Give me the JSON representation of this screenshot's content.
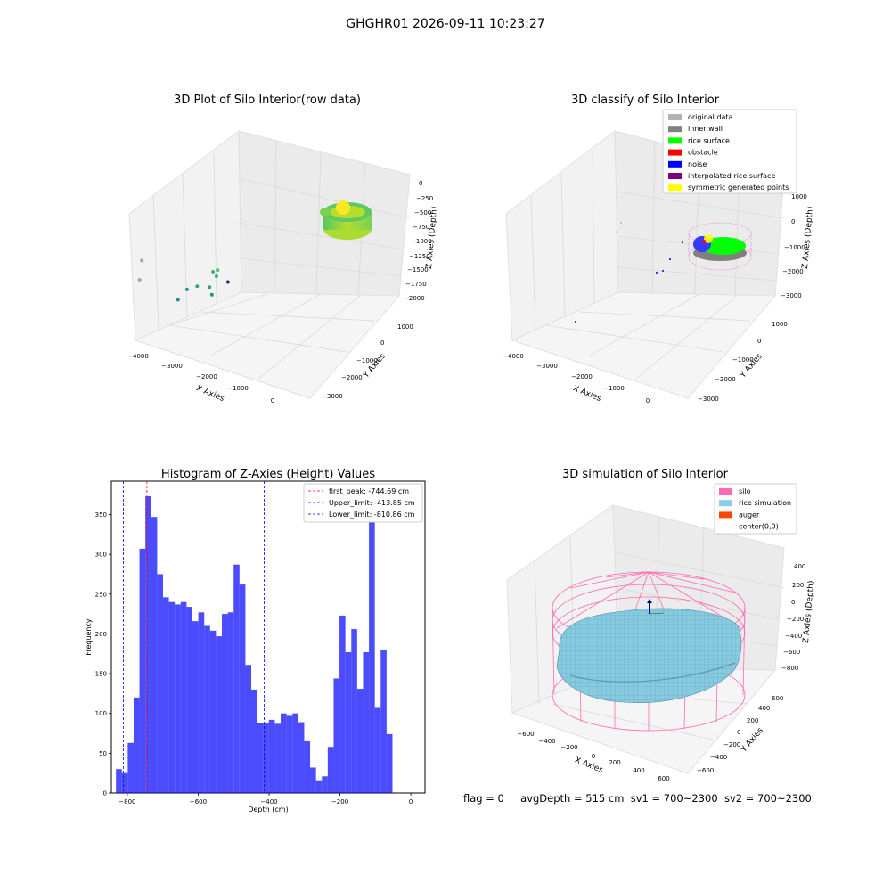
{
  "figure": {
    "suptitle": "GHGHR01 2026-09-11 10:23:27"
  },
  "footer": {
    "flag": "flag = 0",
    "avg_depth": "avgDepth = 515 cm",
    "sv1": "sv1 = 700~2300",
    "sv2": "sv2 = 700~2300"
  },
  "chart_data": [
    {
      "type": "scatter",
      "projection": "3d",
      "title": "3D Plot of Silo Interior(row data)",
      "xlabel": "X Axies",
      "ylabel": "Y Axies",
      "zlabel": "Z Axies (Depth)",
      "x_ticks": [
        "−4000",
        "−3000",
        "−2000",
        "−1000",
        "0"
      ],
      "y_ticks": [
        "1000",
        "0",
        "−1000",
        "−2000",
        "−3000"
      ],
      "z_ticks": [
        "0",
        "−250",
        "−500",
        "−750",
        "−1000",
        "−1250",
        "−1500",
        "−1750",
        "−2000"
      ],
      "colormap": "viridis",
      "points": [
        {
          "x": -3800,
          "y": 200,
          "z": -1400,
          "color": "#a6a6a6"
        },
        {
          "x": -3600,
          "y": 400,
          "z": -1100,
          "color": "#a6a6a6"
        },
        {
          "x": -2900,
          "y": -2400,
          "z": -1000,
          "color": "#4b1c74"
        },
        {
          "x": -2400,
          "y": 600,
          "z": -1500,
          "color": "#2a8f8a"
        },
        {
          "x": -2200,
          "y": 500,
          "z": -1300,
          "color": "#2a8f8a"
        },
        {
          "x": -1900,
          "y": 500,
          "z": -1200,
          "color": "#34a185"
        },
        {
          "x": -1600,
          "y": 400,
          "z": -1150,
          "color": "#34a185"
        },
        {
          "x": -1400,
          "y": 600,
          "z": -1250,
          "color": "#2a8f8a"
        },
        {
          "x": -1300,
          "y": 700,
          "z": -900,
          "color": "#3fb07b"
        },
        {
          "x": -1200,
          "y": 700,
          "z": -950,
          "color": "#3fb07b"
        },
        {
          "x": -1100,
          "y": 800,
          "z": -850,
          "color": "#4dbf6d"
        }
      ]
    },
    {
      "type": "scatter",
      "projection": "3d",
      "title": "3D classify of Silo Interior",
      "xlabel": "X Axies",
      "ylabel": "Y Axies",
      "zlabel": "Z Axies (Depth)",
      "x_ticks": [
        "−4000",
        "−3000",
        "−2000",
        "−1000",
        "0"
      ],
      "y_ticks": [
        "1000",
        "0",
        "−1000",
        "−2000",
        "−3000"
      ],
      "z_ticks": [
        "1000",
        "0",
        "−1000",
        "−2000",
        "−3000"
      ],
      "legend": [
        {
          "label": "original data",
          "color": "#b3b3b3"
        },
        {
          "label": "inner wall",
          "color": "#808080"
        },
        {
          "label": "rice surface",
          "color": "#00ff00"
        },
        {
          "label": "obstacle",
          "color": "#ff0000"
        },
        {
          "label": "noise",
          "color": "#0000ff"
        },
        {
          "label": "interpolated rice surface",
          "color": "#800080"
        },
        {
          "label": "symmetric generated points",
          "color": "#ffff00"
        }
      ],
      "legend_loc": "upper right"
    },
    {
      "type": "bar",
      "title": "Histogram of Z-Axies (Height) Values",
      "xlabel": "Depth (cm)",
      "ylabel": "Frequency",
      "xlim": [
        -845,
        40
      ],
      "ylim": [
        0,
        392
      ],
      "x_ticks": [
        -800,
        -600,
        -400,
        -200,
        0
      ],
      "x_tick_labels": [
        "−800",
        "−600",
        "−400",
        "−200",
        "0"
      ],
      "y_ticks": [
        0,
        50,
        100,
        150,
        200,
        250,
        300,
        350
      ],
      "y_tick_labels": [
        "0",
        "50",
        "100",
        "150",
        "200",
        "250",
        "300",
        "350"
      ],
      "bar_color": "#0000ff",
      "bin_start": -832,
      "bin_width": 16.6,
      "values": [
        30,
        25,
        63,
        120,
        307,
        373,
        347,
        275,
        246,
        240,
        237,
        240,
        234,
        216,
        227,
        210,
        204,
        197,
        225,
        227,
        287,
        262,
        161,
        130,
        88,
        88,
        92,
        87,
        100,
        97,
        100,
        89,
        65,
        32,
        16,
        21,
        58,
        144,
        223,
        177,
        206,
        131,
        177,
        355,
        107,
        180,
        74
      ],
      "vlines": [
        {
          "x": -744.69,
          "color": "#ff0000",
          "label": "first_peak: -744.69 cm"
        },
        {
          "x": -413.85,
          "color": "#0000ff",
          "label": "Upper_limit: -413.85 cm"
        },
        {
          "x": -810.86,
          "color": "#0000ff",
          "label": "Lower_limit: -810.86 cm"
        }
      ],
      "legend_loc": "upper right"
    },
    {
      "type": "scatter",
      "projection": "3d",
      "title": "3D simulation of Silo Interior",
      "xlabel": "X Axies",
      "ylabel": "Y Axies",
      "zlabel": "Z Axies (Depth)",
      "x_ticks": [
        "−600",
        "−400",
        "−200",
        "0",
        "200",
        "400",
        "600"
      ],
      "y_ticks": [
        "600",
        "400",
        "200",
        "0",
        "−200",
        "−400",
        "−600"
      ],
      "z_ticks": [
        "400",
        "200",
        "0",
        "−200",
        "−400",
        "−600",
        "−800"
      ],
      "legend": [
        {
          "label": "silo",
          "color": "#ff69b4"
        },
        {
          "label": "rice simulation",
          "color": "#87ceeb"
        },
        {
          "label": "auger",
          "color": "#ff4500"
        },
        {
          "label": "center(0,0)",
          "color": "#ffffff"
        }
      ],
      "legend_loc": "upper right"
    }
  ]
}
